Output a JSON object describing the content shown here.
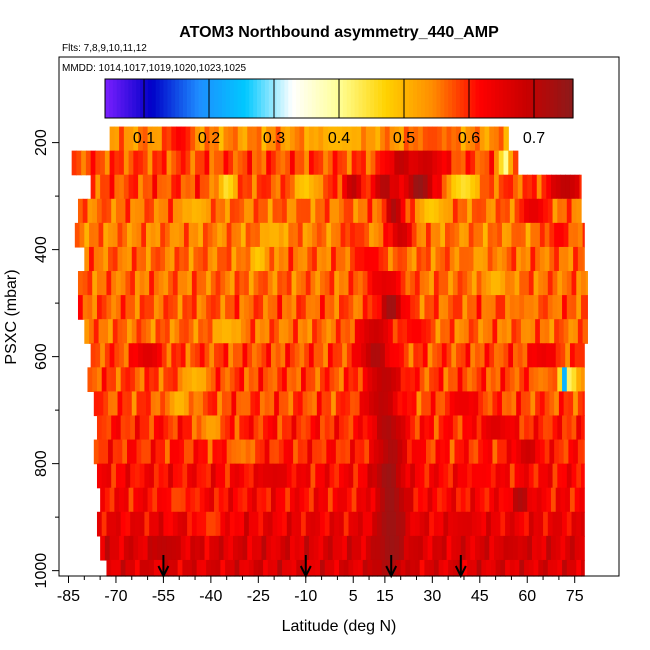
{
  "chart_data": {
    "type": "heatmap",
    "title": "ATOM3 Northbound asymmetry_440_AMP",
    "flights_text": "Flts: 7,8,9,10,11,12",
    "dates_text": "MMDD: 1014,1017,1019,1020,1023,1025",
    "xlabel": "Latitude (deg N)",
    "ylabel": "PSXC (mbar)",
    "xlim": [
      -88,
      89
    ],
    "ylim": [
      1010,
      40
    ],
    "x_ticks": [
      -85,
      -70,
      -55,
      -40,
      -25,
      -10,
      5,
      15,
      30,
      45,
      60,
      75
    ],
    "y_ticks": [
      200,
      400,
      600,
      800,
      1000
    ],
    "colorbar": {
      "min": 0.04,
      "max": 0.76,
      "ticks": [
        0.1,
        0.2,
        0.3,
        0.4,
        0.5,
        0.6,
        0.7
      ],
      "colors": [
        "#7a1fff",
        "#0000c8",
        "#1e8cff",
        "#00c8ff",
        "#ffffff",
        "#ffff96",
        "#ffd200",
        "#ff8c00",
        "#ff0000",
        "#c80000",
        "#8c1a1a"
      ]
    },
    "arrow_latitudes": [
      -55,
      -10,
      17,
      39
    ],
    "layers": [
      {
        "p_top": 170,
        "p_bot": 215,
        "lat_min": -72,
        "lat_max": 54,
        "base": 0.54,
        "features": [
          [
            -50,
            4,
            0.62
          ],
          [
            0,
            8,
            0.5
          ],
          [
            30,
            6,
            0.58
          ]
        ]
      },
      {
        "p_top": 215,
        "p_bot": 260,
        "lat_min": -84,
        "lat_max": 57,
        "base": 0.58,
        "features": [
          [
            20,
            4,
            0.7
          ],
          [
            28,
            6,
            0.68
          ],
          [
            53,
            2,
            0.4
          ]
        ]
      },
      {
        "p_top": 260,
        "p_bot": 305,
        "lat_min": -78,
        "lat_max": 77,
        "base": 0.58,
        "features": [
          [
            -35,
            3,
            0.45
          ],
          [
            -10,
            4,
            0.48
          ],
          [
            5,
            3,
            0.7
          ],
          [
            15,
            3,
            0.72
          ],
          [
            26,
            5,
            0.75
          ],
          [
            40,
            5,
            0.45
          ],
          [
            72,
            5,
            0.7
          ]
        ]
      },
      {
        "p_top": 305,
        "p_bot": 350,
        "lat_min": -82,
        "lat_max": 77,
        "base": 0.56,
        "features": [
          [
            -45,
            4,
            0.5
          ],
          [
            18,
            3,
            0.72
          ],
          [
            30,
            4,
            0.48
          ],
          [
            62,
            4,
            0.65
          ]
        ]
      },
      {
        "p_top": 350,
        "p_bot": 395,
        "lat_min": -83,
        "lat_max": 78,
        "base": 0.55,
        "features": [
          [
            -20,
            3,
            0.5
          ],
          [
            5,
            3,
            0.6
          ],
          [
            20,
            4,
            0.68
          ],
          [
            70,
            4,
            0.62
          ]
        ]
      },
      {
        "p_top": 395,
        "p_bot": 440,
        "lat_min": -80,
        "lat_max": 78,
        "base": 0.56,
        "features": [
          [
            -25,
            3,
            0.48
          ],
          [
            10,
            5,
            0.62
          ],
          [
            45,
            3,
            0.52
          ]
        ]
      },
      {
        "p_top": 440,
        "p_bot": 485,
        "lat_min": -82,
        "lat_max": 79,
        "base": 0.56,
        "features": [
          [
            15,
            6,
            0.65
          ],
          [
            50,
            4,
            0.5
          ]
        ]
      },
      {
        "p_top": 485,
        "p_bot": 530,
        "lat_min": -82,
        "lat_max": 79,
        "base": 0.57,
        "features": [
          [
            17,
            4,
            0.74
          ],
          [
            60,
            4,
            0.55
          ]
        ]
      },
      {
        "p_top": 530,
        "p_bot": 575,
        "lat_min": -80,
        "lat_max": 79,
        "base": 0.56,
        "features": [
          [
            -35,
            4,
            0.5
          ],
          [
            12,
            6,
            0.68
          ],
          [
            25,
            4,
            0.62
          ]
        ]
      },
      {
        "p_top": 575,
        "p_bot": 620,
        "lat_min": -78,
        "lat_max": 78,
        "base": 0.58,
        "features": [
          [
            -60,
            4,
            0.66
          ],
          [
            12,
            5,
            0.72
          ],
          [
            65,
            4,
            0.64
          ]
        ]
      },
      {
        "p_top": 620,
        "p_bot": 665,
        "lat_min": -79,
        "lat_max": 78,
        "base": 0.58,
        "features": [
          [
            -45,
            4,
            0.5
          ],
          [
            15,
            6,
            0.7
          ],
          [
            65,
            3,
            0.55
          ],
          [
            72,
            1.5,
            0.22
          ],
          [
            75,
            1.5,
            0.45
          ]
        ]
      },
      {
        "p_top": 665,
        "p_bot": 710,
        "lat_min": -77,
        "lat_max": 78,
        "base": 0.58,
        "features": [
          [
            -50,
            4,
            0.5
          ],
          [
            14,
            6,
            0.7
          ],
          [
            40,
            5,
            0.64
          ]
        ]
      },
      {
        "p_top": 710,
        "p_bot": 755,
        "lat_min": -76,
        "lat_max": 78,
        "base": 0.6,
        "features": [
          [
            -40,
            4,
            0.52
          ],
          [
            16,
            5,
            0.72
          ],
          [
            50,
            5,
            0.66
          ]
        ]
      },
      {
        "p_top": 755,
        "p_bot": 800,
        "lat_min": -77,
        "lat_max": 78,
        "base": 0.6,
        "features": [
          [
            -30,
            4,
            0.55
          ],
          [
            17,
            5,
            0.72
          ],
          [
            60,
            4,
            0.68
          ]
        ]
      },
      {
        "p_top": 800,
        "p_bot": 845,
        "lat_min": -76,
        "lat_max": 78,
        "base": 0.62,
        "features": [
          [
            -20,
            5,
            0.66
          ],
          [
            16,
            5,
            0.74
          ],
          [
            45,
            5,
            0.62
          ]
        ]
      },
      {
        "p_top": 845,
        "p_bot": 890,
        "lat_min": -75,
        "lat_max": 78,
        "base": 0.62,
        "features": [
          [
            -50,
            4,
            0.58
          ],
          [
            17,
            5,
            0.74
          ],
          [
            58,
            3,
            0.72
          ]
        ]
      },
      {
        "p_top": 890,
        "p_bot": 935,
        "lat_min": -76,
        "lat_max": 78,
        "base": 0.64,
        "features": [
          [
            -40,
            4,
            0.58
          ],
          [
            17,
            5,
            0.74
          ],
          [
            40,
            5,
            0.66
          ]
        ]
      },
      {
        "p_top": 935,
        "p_bot": 980,
        "lat_min": -75,
        "lat_max": 78,
        "base": 0.66,
        "features": [
          [
            -55,
            4,
            0.7
          ],
          [
            17,
            5,
            0.74
          ],
          [
            55,
            4,
            0.68
          ]
        ]
      },
      {
        "p_top": 980,
        "p_bot": 1010,
        "lat_min": -73,
        "lat_max": 78,
        "base": 0.66,
        "features": [
          [
            16,
            5,
            0.72
          ]
        ]
      }
    ]
  }
}
